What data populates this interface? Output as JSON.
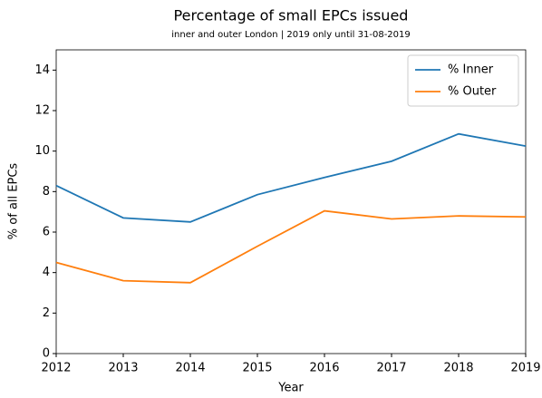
{
  "chart_data": {
    "type": "line",
    "title": "Percentage of small EPCs issued",
    "subtitle": "inner and outer London | 2019 only until 31-08-2019",
    "x_label": "Year",
    "y_label": "% of all EPCs",
    "x": [
      2012,
      2013,
      2014,
      2015,
      2016,
      2017,
      2018,
      2019
    ],
    "series": [
      {
        "name": "% Inner",
        "color": "#1f77b4",
        "values": [
          8.3,
          6.7,
          6.5,
          7.85,
          8.7,
          9.5,
          10.85,
          10.25
        ]
      },
      {
        "name": "% Outer",
        "color": "#ff7f0e",
        "values": [
          4.5,
          3.6,
          3.5,
          5.3,
          7.05,
          6.65,
          6.8,
          6.75
        ]
      }
    ],
    "xlim": [
      2012,
      2019
    ],
    "xticks": [
      2012,
      2013,
      2014,
      2015,
      2016,
      2017,
      2018,
      2019
    ],
    "ylim": [
      0,
      15
    ],
    "yticks": [
      0,
      2,
      4,
      6,
      8,
      10,
      12,
      14
    ],
    "grid": false,
    "legend": "upper right"
  }
}
